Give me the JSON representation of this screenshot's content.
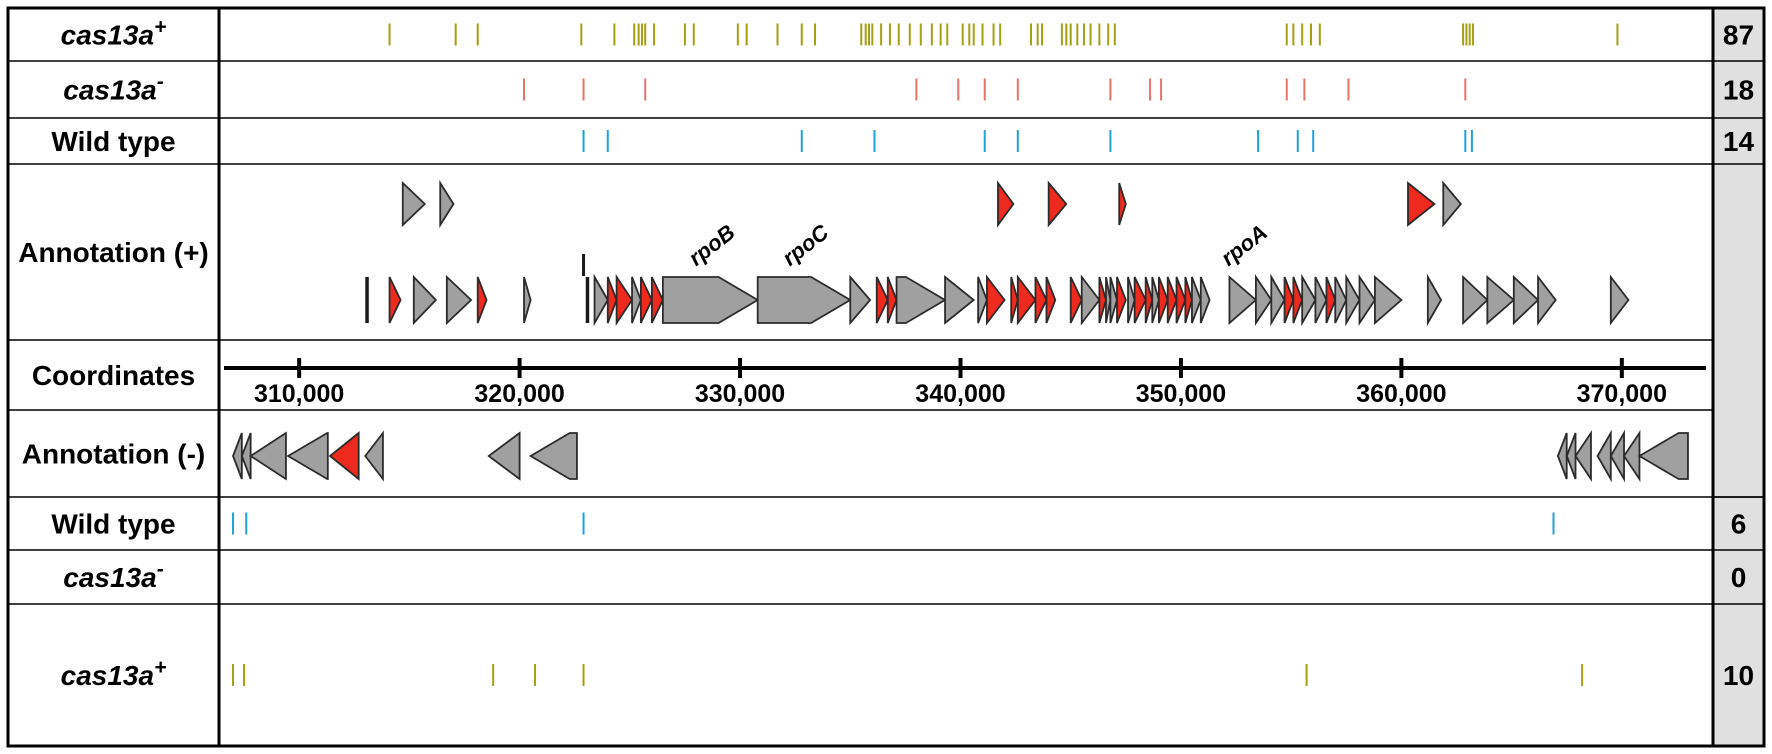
{
  "rows": [
    {
      "id": "top-cas13a-plus",
      "base": "cas13a",
      "sup": "+",
      "italic": true,
      "count": "87",
      "color": "#a3a012"
    },
    {
      "id": "top-cas13a-minus",
      "base": "cas13a",
      "sup": "-",
      "italic": true,
      "count": "18",
      "color": "#e8736b"
    },
    {
      "id": "top-wild-type",
      "base": "Wild type",
      "sup": "",
      "italic": false,
      "count": "14",
      "color": "#1ea2dd"
    },
    {
      "id": "annotation-plus",
      "base": "Annotation (+)",
      "sup": "",
      "italic": false,
      "count": ""
    },
    {
      "id": "coordinates",
      "base": "Coordinates",
      "sup": "",
      "italic": false,
      "count": ""
    },
    {
      "id": "annotation-minus",
      "base": "Annotation (-)",
      "sup": "",
      "italic": false,
      "count": ""
    },
    {
      "id": "bottom-wild-type",
      "base": "Wild type",
      "sup": "",
      "italic": false,
      "count": "6",
      "color": "#1ea2dd"
    },
    {
      "id": "bottom-cas13a-minus",
      "base": "cas13a",
      "sup": "-",
      "italic": true,
      "count": "0",
      "color": "#e8736b"
    },
    {
      "id": "bottom-cas13a-plus",
      "base": "cas13a",
      "sup": "+",
      "italic": true,
      "count": "10",
      "color": "#a3a012"
    }
  ],
  "axis": {
    "min": 306500,
    "max": 374000,
    "ticks": [
      310000,
      320000,
      330000,
      340000,
      350000,
      360000,
      370000
    ],
    "tick_labels": [
      "310,000",
      "320,000",
      "330,000",
      "340,000",
      "350,000",
      "360,000",
      "370,000"
    ]
  },
  "colors": {
    "gene_fill": "#a0a0a0",
    "essential_fill": "#ee2a1e",
    "outline": "#2b2b2b",
    "count_bg": "#e0e0e0"
  },
  "mutations": {
    "top-cas13a-plus": [
      314100,
      317100,
      318100,
      322800,
      324300,
      325200,
      325400,
      325550,
      325700,
      326100,
      327500,
      327900,
      329900,
      330300,
      331700,
      332800,
      333400,
      335500,
      335700,
      335850,
      336000,
      336400,
      336800,
      337200,
      337700,
      338200,
      338700,
      339100,
      339400,
      340100,
      340400,
      340600,
      341000,
      341500,
      341800,
      343200,
      343500,
      343700,
      344600,
      344800,
      345000,
      345300,
      345600,
      345900,
      346300,
      346700,
      347000,
      354800,
      355100,
      355500,
      355900,
      356300,
      362800,
      362950,
      363100,
      363250,
      369800
    ],
    "top-cas13a-minus": [
      320200,
      322900,
      325700,
      338000,
      339900,
      341100,
      342600,
      346800,
      348600,
      349100,
      354800,
      355600,
      357600,
      362900
    ],
    "top-wild-type": [
      322900,
      324000,
      332800,
      336100,
      341100,
      342600,
      346800,
      353500,
      355300,
      356000,
      362900,
      363200
    ],
    "bottom-wild-type": [
      307000,
      307600,
      322900,
      366900
    ],
    "bottom-cas13a-minus": [],
    "bottom-cas13a-plus": [
      307000,
      307500,
      318800,
      320700,
      322900,
      355700,
      368200
    ]
  },
  "annotation_plus_upper": [
    {
      "s": 314700,
      "e": 315700,
      "f": "g"
    },
    {
      "s": 316400,
      "e": 317000,
      "f": "g"
    },
    {
      "s": 341700,
      "e": 342400,
      "f": "r"
    },
    {
      "s": 344000,
      "e": 344800,
      "f": "r"
    },
    {
      "s": 347200,
      "e": 347500,
      "f": "r"
    },
    {
      "s": 360300,
      "e": 361500,
      "f": "r"
    },
    {
      "s": 361900,
      "e": 362700,
      "f": "g"
    }
  ],
  "annotation_plus_lower": [
    {
      "s": 313000,
      "e": 313300,
      "f": "g",
      "bar": true
    },
    {
      "s": 314100,
      "e": 314600,
      "f": "r"
    },
    {
      "s": 315200,
      "e": 316200,
      "f": "g"
    },
    {
      "s": 316700,
      "e": 317800,
      "f": "g"
    },
    {
      "s": 318100,
      "e": 318500,
      "f": "r"
    },
    {
      "s": 320200,
      "e": 320500,
      "f": "g"
    },
    {
      "s": 323000,
      "e": 323200,
      "f": "g",
      "bar": true
    },
    {
      "s": 323400,
      "e": 324000,
      "f": "g"
    },
    {
      "s": 324000,
      "e": 324400,
      "f": "r"
    },
    {
      "s": 324400,
      "e": 325100,
      "f": "r"
    },
    {
      "s": 325100,
      "e": 325500,
      "f": "g"
    },
    {
      "s": 325500,
      "e": 326000,
      "f": "r"
    },
    {
      "s": 326000,
      "e": 326500,
      "f": "r"
    },
    {
      "s": 326500,
      "e": 330800,
      "f": "g",
      "label": "rpoB"
    },
    {
      "s": 330800,
      "e": 335000,
      "f": "g",
      "label": "rpoC"
    },
    {
      "s": 335000,
      "e": 335900,
      "f": "g"
    },
    {
      "s": 336200,
      "e": 336700,
      "f": "r"
    },
    {
      "s": 336700,
      "e": 337100,
      "f": "r"
    },
    {
      "s": 337100,
      "e": 339300,
      "f": "g"
    },
    {
      "s": 339300,
      "e": 340600,
      "f": "g"
    },
    {
      "s": 340800,
      "e": 341200,
      "f": "g"
    },
    {
      "s": 341200,
      "e": 342000,
      "f": "r"
    },
    {
      "s": 342300,
      "e": 342600,
      "f": "r"
    },
    {
      "s": 342600,
      "e": 343400,
      "f": "r"
    },
    {
      "s": 343400,
      "e": 343900,
      "f": "r"
    },
    {
      "s": 343900,
      "e": 344300,
      "f": "r"
    },
    {
      "s": 345000,
      "e": 345500,
      "f": "r"
    },
    {
      "s": 345500,
      "e": 346300,
      "f": "g"
    },
    {
      "s": 346300,
      "e": 346600,
      "f": "r"
    },
    {
      "s": 346600,
      "e": 346800,
      "f": "g"
    },
    {
      "s": 346800,
      "e": 347100,
      "f": "g"
    },
    {
      "s": 347100,
      "e": 347500,
      "f": "r"
    },
    {
      "s": 347600,
      "e": 347900,
      "f": "g"
    },
    {
      "s": 347900,
      "e": 348400,
      "f": "r"
    },
    {
      "s": 348400,
      "e": 348700,
      "f": "r"
    },
    {
      "s": 348700,
      "e": 349000,
      "f": "g"
    },
    {
      "s": 349000,
      "e": 349400,
      "f": "r"
    },
    {
      "s": 349400,
      "e": 349800,
      "f": "r"
    },
    {
      "s": 349800,
      "e": 350200,
      "f": "r"
    },
    {
      "s": 350200,
      "e": 350500,
      "f": "r"
    },
    {
      "s": 350500,
      "e": 350900,
      "f": "g"
    },
    {
      "s": 350900,
      "e": 351300,
      "f": "g"
    },
    {
      "s": 352200,
      "e": 353400,
      "f": "g",
      "label": "rpoA"
    },
    {
      "s": 353400,
      "e": 354100,
      "f": "g"
    },
    {
      "s": 354100,
      "e": 354700,
      "f": "g"
    },
    {
      "s": 354700,
      "e": 355100,
      "f": "r"
    },
    {
      "s": 355100,
      "e": 355500,
      "f": "r"
    },
    {
      "s": 355500,
      "e": 356100,
      "f": "g"
    },
    {
      "s": 356100,
      "e": 356600,
      "f": "g"
    },
    {
      "s": 356600,
      "e": 357000,
      "f": "r"
    },
    {
      "s": 357000,
      "e": 357500,
      "f": "g"
    },
    {
      "s": 357500,
      "e": 358100,
      "f": "g"
    },
    {
      "s": 358100,
      "e": 358800,
      "f": "g"
    },
    {
      "s": 358800,
      "e": 360000,
      "f": "g"
    },
    {
      "s": 361200,
      "e": 361800,
      "f": "g"
    },
    {
      "s": 362800,
      "e": 363900,
      "f": "g"
    },
    {
      "s": 363900,
      "e": 365100,
      "f": "g"
    },
    {
      "s": 365100,
      "e": 366200,
      "f": "g"
    },
    {
      "s": 366200,
      "e": 367000,
      "f": "g"
    },
    {
      "s": 369500,
      "e": 370300,
      "f": "g"
    }
  ],
  "annotation_minus": [
    {
      "s": 307000,
      "e": 307400,
      "f": "g"
    },
    {
      "s": 307400,
      "e": 307800,
      "f": "g"
    },
    {
      "s": 307800,
      "e": 309400,
      "f": "g"
    },
    {
      "s": 309500,
      "e": 311300,
      "f": "g"
    },
    {
      "s": 311400,
      "e": 312700,
      "f": "r"
    },
    {
      "s": 313000,
      "e": 313800,
      "f": "g"
    },
    {
      "s": 318600,
      "e": 320000,
      "f": "g"
    },
    {
      "s": 320500,
      "e": 322600,
      "f": "g"
    },
    {
      "s": 367100,
      "e": 367500,
      "f": "g"
    },
    {
      "s": 367500,
      "e": 367900,
      "f": "g"
    },
    {
      "s": 367900,
      "e": 368600,
      "f": "g"
    },
    {
      "s": 368900,
      "e": 369500,
      "f": "g"
    },
    {
      "s": 369500,
      "e": 370100,
      "f": "g"
    },
    {
      "s": 370100,
      "e": 370800,
      "f": "g"
    },
    {
      "s": 370800,
      "e": 373000,
      "f": "g"
    }
  ]
}
